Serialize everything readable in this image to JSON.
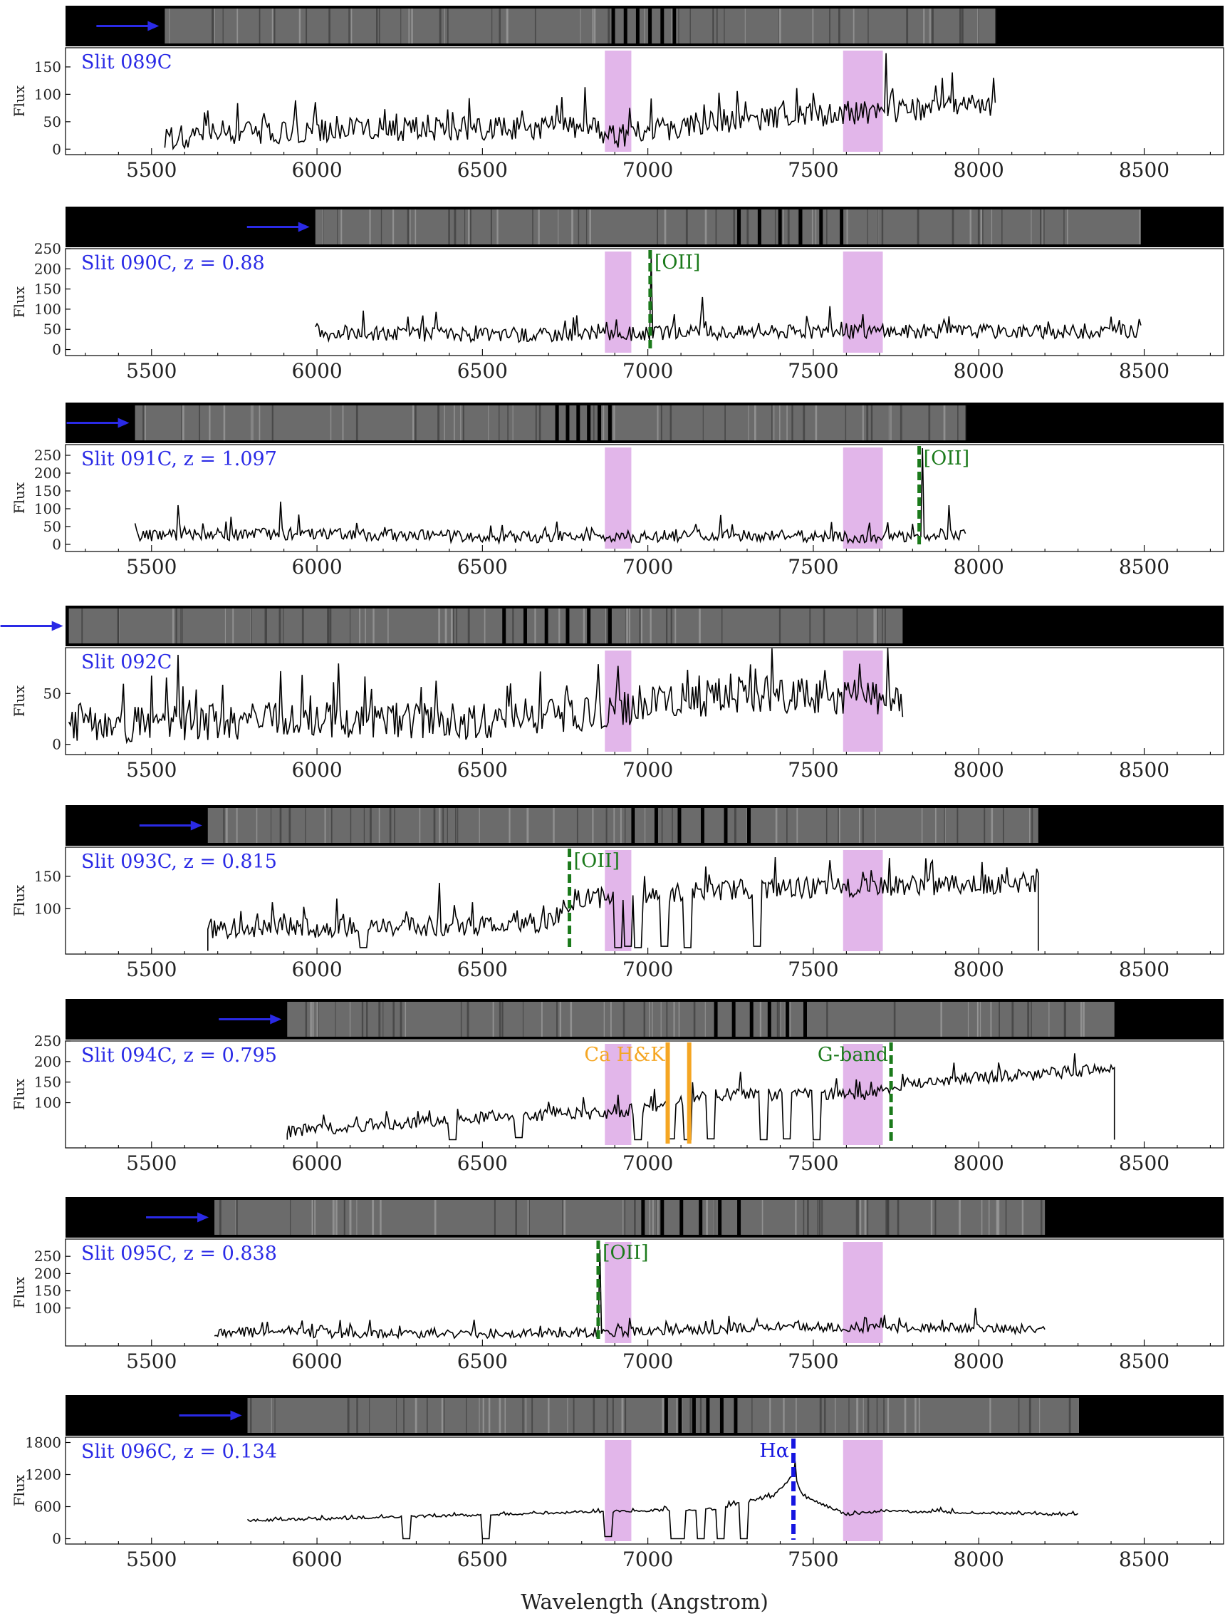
{
  "figure": {
    "xlabel": "Wavelength (Angstrom)",
    "ylabel": "Flux",
    "xlim": [
      5240,
      8740
    ],
    "xticks": [
      5500,
      6000,
      6500,
      7000,
      7500,
      8000,
      8500
    ],
    "telluric_bands": [
      [
        6870,
        6950
      ],
      [
        7590,
        7710
      ]
    ],
    "colors": {
      "slit_label": "#2a2ae6",
      "arrow": "#2a2ae6",
      "emission_line": "#1b7a1b",
      "absorption_line": "#f5a623",
      "halpha": "#1515e0",
      "telluric": "#e2b6ea",
      "spectrum": "#000000",
      "image_strip": "#000000"
    }
  },
  "chart_data": [
    {
      "type": "line",
      "slit": "Slit 089C",
      "label": "Slit 089C",
      "redshift": null,
      "range": [
        5540,
        8050
      ],
      "ylim": [
        -10,
        185
      ],
      "yticks": [
        0,
        50,
        100,
        150
      ],
      "trace": {
        "base": [
          [
            5540,
            20
          ],
          [
            6000,
            35
          ],
          [
            6850,
            40
          ],
          [
            6870,
            20
          ],
          [
            7200,
            50
          ],
          [
            7700,
            70
          ],
          [
            8050,
            80
          ]
        ],
        "noise": 22,
        "seed": 89,
        "spikes": [
          [
            7720,
            175
          ],
          [
            7920,
            140
          ],
          [
            6740,
            95
          ]
        ],
        "dips": [],
        "ends": [
          0,
          0
        ]
      },
      "markers": [],
      "image_strip": {
        "data_start": 5540,
        "data_end": 8050,
        "gaps": [
          6890,
          7075
        ]
      }
    },
    {
      "type": "line",
      "slit": "Slit 090C",
      "label": "Slit 090C, z = 0.88",
      "redshift": 0.88,
      "range": [
        5995,
        8490
      ],
      "ylim": [
        -15,
        250
      ],
      "yticks": [
        0,
        50,
        100,
        150,
        200,
        250
      ],
      "trace": {
        "base": [
          [
            5995,
            40
          ],
          [
            6600,
            35
          ],
          [
            7000,
            40
          ],
          [
            7500,
            45
          ],
          [
            8490,
            45
          ]
        ],
        "noise": 18,
        "seed": 90,
        "spikes": [
          [
            7010,
            230
          ],
          [
            7165,
            130
          ]
        ],
        "dips": [],
        "ends": [
          0,
          0
        ]
      },
      "markers": [
        {
          "wavelength": 7007,
          "label": "[OII]",
          "style": "emission"
        }
      ],
      "image_strip": {
        "data_start": 5995,
        "data_end": 8490,
        "gaps": [
          7270,
          7580
        ]
      }
    },
    {
      "type": "line",
      "slit": "Slit 091C",
      "label": "Slit 091C, z = 1.097",
      "redshift": 1.097,
      "range": [
        5450,
        7960
      ],
      "ylim": [
        -20,
        280
      ],
      "yticks": [
        0,
        50,
        100,
        150,
        200,
        250
      ],
      "trace": {
        "base": [
          [
            5450,
            25
          ],
          [
            6000,
            30
          ],
          [
            6600,
            20
          ],
          [
            7200,
            25
          ],
          [
            7700,
            20
          ],
          [
            7960,
            30
          ]
        ],
        "noise": 17,
        "seed": 91,
        "spikes": [
          [
            5580,
            110
          ],
          [
            5890,
            120
          ],
          [
            7830,
            270
          ],
          [
            7910,
            110
          ]
        ],
        "dips": [],
        "ends": [
          0,
          0
        ]
      },
      "markers": [
        {
          "wavelength": 7820,
          "label": "[OII]",
          "style": "emission"
        }
      ],
      "image_strip": {
        "data_start": 5450,
        "data_end": 7960,
        "gaps": [
          6720,
          6880
        ]
      }
    },
    {
      "type": "line",
      "slit": "Slit 092C",
      "label": "Slit 092C",
      "redshift": null,
      "range": [
        5250,
        7770
      ],
      "ylim": [
        -10,
        95
      ],
      "yticks": [
        0,
        50
      ],
      "trace": {
        "base": [
          [
            5250,
            18
          ],
          [
            6000,
            25
          ],
          [
            6600,
            22
          ],
          [
            6900,
            35
          ],
          [
            7300,
            50
          ],
          [
            7700,
            45
          ],
          [
            7770,
            40
          ]
        ],
        "noise": 18,
        "seed": 92,
        "spikes": [
          [
            5580,
            88
          ],
          [
            5890,
            72
          ]
        ],
        "dips": [],
        "ends": [
          0,
          0
        ]
      },
      "markers": [],
      "image_strip": {
        "data_start": 5250,
        "data_end": 7770,
        "gaps": [
          6560,
          6880
        ]
      }
    },
    {
      "type": "line",
      "slit": "Slit 093C",
      "label": "Slit 093C, z = 0.815",
      "redshift": 0.815,
      "range": [
        5670,
        8180
      ],
      "ylim": [
        30,
        195
      ],
      "yticks": [
        100,
        150
      ],
      "trace": {
        "base": [
          [
            5670,
            70
          ],
          [
            6300,
            72
          ],
          [
            6700,
            80
          ],
          [
            6780,
            115
          ],
          [
            7300,
            130
          ],
          [
            7700,
            135
          ],
          [
            8180,
            140
          ]
        ],
        "noise": 16,
        "seed": 93,
        "spikes": [
          [
            6370,
            140
          ],
          [
            7550,
            175
          ],
          [
            7840,
            178
          ]
        ],
        "dips": [
          [
            6140,
            40
          ],
          [
            6910,
            40
          ],
          [
            6940,
            42
          ],
          [
            6970,
            40
          ],
          [
            7050,
            42
          ],
          [
            7120,
            40
          ],
          [
            7330,
            42
          ]
        ],
        "ends": [
          35,
          35
        ]
      },
      "markers": [
        {
          "wavelength": 6763,
          "label": "[OII]",
          "style": "emission"
        }
      ],
      "image_strip": {
        "data_start": 5670,
        "data_end": 8180,
        "gaps": [
          6950,
          7300
        ]
      }
    },
    {
      "type": "line",
      "slit": "Slit 094C",
      "label": "Slit 094C, z = 0.795",
      "redshift": 0.795,
      "range": [
        5910,
        8410
      ],
      "ylim": [
        -10,
        250
      ],
      "yticks": [
        100,
        150,
        200,
        250
      ],
      "trace": {
        "base": [
          [
            5910,
            30
          ],
          [
            6500,
            65
          ],
          [
            6900,
            75
          ],
          [
            7200,
            120
          ],
          [
            7650,
            120
          ],
          [
            7800,
            150
          ],
          [
            8200,
            170
          ],
          [
            8410,
            185
          ]
        ],
        "noise": 15,
        "seed": 94,
        "spikes": [
          [
            8290,
            220
          ],
          [
            7280,
            175
          ]
        ],
        "dips": [
          [
            6410,
            10
          ],
          [
            6610,
            15
          ],
          [
            6970,
            10
          ],
          [
            7070,
            12
          ],
          [
            7120,
            10
          ],
          [
            7190,
            12
          ],
          [
            7350,
            10
          ],
          [
            7420,
            12
          ],
          [
            7510,
            10
          ]
        ],
        "ends": [
          10,
          10
        ]
      },
      "markers": [
        {
          "wavelength": 7060,
          "label": "Ca H&K",
          "style": "absorption"
        },
        {
          "wavelength": 7125,
          "label": "",
          "style": "absorption"
        },
        {
          "wavelength": 7735,
          "label": "G-band",
          "style": "emission"
        }
      ],
      "image_strip": {
        "data_start": 5910,
        "data_end": 8410,
        "gaps": [
          7200,
          7470
        ]
      }
    },
    {
      "type": "line",
      "slit": "Slit 095C",
      "label": "Slit 095C, z = 0.838",
      "redshift": 0.838,
      "range": [
        5690,
        8200
      ],
      "ylim": [
        -10,
        300
      ],
      "yticks": [
        100,
        150,
        200,
        250
      ],
      "trace": {
        "base": [
          [
            5690,
            30
          ],
          [
            6400,
            25
          ],
          [
            6850,
            30
          ],
          [
            7400,
            45
          ],
          [
            8200,
            40
          ]
        ],
        "noise": 14,
        "seed": 95,
        "spikes": [
          [
            6855,
            270
          ],
          [
            7990,
            100
          ]
        ],
        "dips": [],
        "ends": [
          0,
          0
        ]
      },
      "markers": [
        {
          "wavelength": 6850,
          "label": "[OII]",
          "style": "emission"
        }
      ],
      "image_strip": {
        "data_start": 5690,
        "data_end": 8200,
        "gaps": [
          6980,
          7270
        ]
      }
    },
    {
      "type": "line",
      "slit": "Slit 096C",
      "label": "Slit 096C, z = 0.134",
      "redshift": 0.134,
      "range": [
        5790,
        8300
      ],
      "ylim": [
        -100,
        1900
      ],
      "yticks": [
        0,
        600,
        1200,
        1800
      ],
      "trace": {
        "base": [
          [
            5790,
            340
          ],
          [
            6200,
            400
          ],
          [
            6700,
            480
          ],
          [
            7200,
            560
          ],
          [
            7380,
            800
          ],
          [
            7440,
            1200
          ],
          [
            7470,
            800
          ],
          [
            7600,
            450
          ],
          [
            7700,
            520
          ],
          [
            8300,
            450
          ]
        ],
        "noise": 25,
        "seed": 96,
        "spikes": [
          [
            7445,
            1450
          ]
        ],
        "dips": [
          [
            6270,
            0
          ],
          [
            6510,
            0
          ],
          [
            6880,
            40
          ],
          [
            7080,
            0
          ],
          [
            7100,
            0
          ],
          [
            7160,
            0
          ],
          [
            7220,
            0
          ],
          [
            7290,
            0
          ]
        ],
        "ends": [
          0,
          0
        ]
      },
      "markers": [
        {
          "wavelength": 7440,
          "label": "Hα",
          "style": "halpha"
        }
      ],
      "image_strip": {
        "data_start": 5790,
        "data_end": 8300,
        "gaps": [
          7050,
          7260
        ]
      }
    }
  ]
}
